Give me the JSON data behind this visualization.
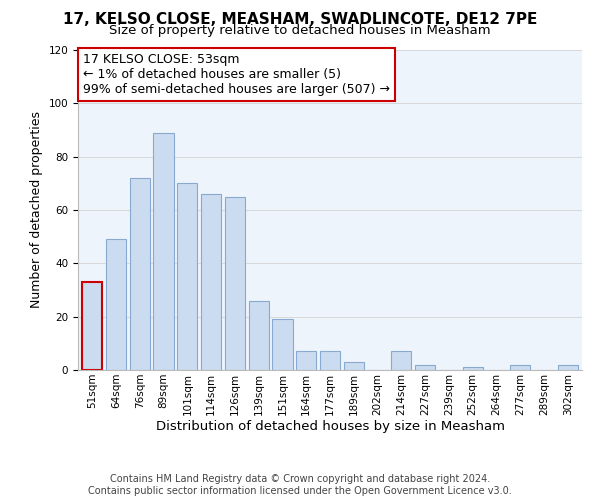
{
  "title": "17, KELSO CLOSE, MEASHAM, SWADLINCOTE, DE12 7PE",
  "subtitle": "Size of property relative to detached houses in Measham",
  "xlabel": "Distribution of detached houses by size in Measham",
  "ylabel": "Number of detached properties",
  "bar_labels": [
    "51sqm",
    "64sqm",
    "76sqm",
    "89sqm",
    "101sqm",
    "114sqm",
    "126sqm",
    "139sqm",
    "151sqm",
    "164sqm",
    "177sqm",
    "189sqm",
    "202sqm",
    "214sqm",
    "227sqm",
    "239sqm",
    "252sqm",
    "264sqm",
    "277sqm",
    "289sqm",
    "302sqm"
  ],
  "bar_values": [
    33,
    49,
    72,
    89,
    70,
    66,
    65,
    26,
    19,
    7,
    7,
    3,
    0,
    7,
    2,
    0,
    1,
    0,
    2,
    0,
    2
  ],
  "bar_color": "#ccdcf0",
  "highlight_edge_color": "#cc0000",
  "normal_edge_color": "#88aad0",
  "highlight_index": 0,
  "annotation_title": "17 KELSO CLOSE: 53sqm",
  "annotation_line1": "← 1% of detached houses are smaller (5)",
  "annotation_line2": "99% of semi-detached houses are larger (507) →",
  "annotation_box_edge": "#cc0000",
  "ylim": [
    0,
    120
  ],
  "yticks": [
    0,
    20,
    40,
    60,
    80,
    100,
    120
  ],
  "footer1": "Contains HM Land Registry data © Crown copyright and database right 2024.",
  "footer2": "Contains public sector information licensed under the Open Government Licence v3.0.",
  "title_fontsize": 11,
  "subtitle_fontsize": 9.5,
  "ylabel_fontsize": 9,
  "xlabel_fontsize": 9.5,
  "tick_fontsize": 7.5,
  "annotation_fontsize": 9,
  "footer_fontsize": 7,
  "grid_color": "#d8d8d8",
  "bg_color": "#eef4fc"
}
